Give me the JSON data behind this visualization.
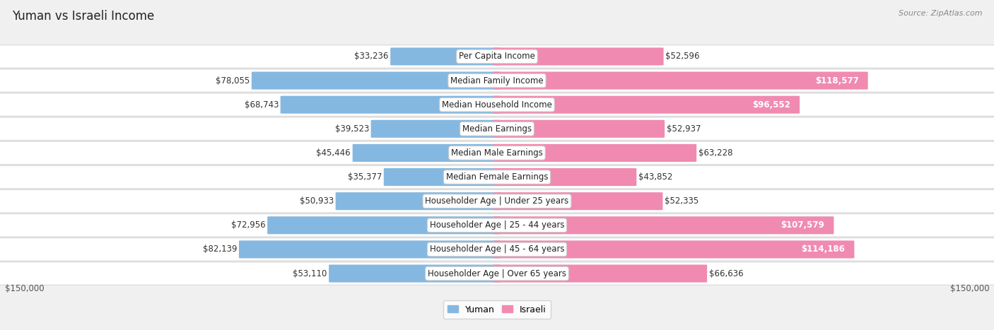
{
  "title": "Yuman vs Israeli Income",
  "source": "Source: ZipAtlas.com",
  "categories": [
    "Per Capita Income",
    "Median Family Income",
    "Median Household Income",
    "Median Earnings",
    "Median Male Earnings",
    "Median Female Earnings",
    "Householder Age | Under 25 years",
    "Householder Age | 25 - 44 years",
    "Householder Age | 45 - 64 years",
    "Householder Age | Over 65 years"
  ],
  "yuman_values": [
    33236,
    78055,
    68743,
    39523,
    45446,
    35377,
    50933,
    72956,
    82139,
    53110
  ],
  "israeli_values": [
    52596,
    118577,
    96552,
    52937,
    63228,
    43852,
    52335,
    107579,
    114186,
    66636
  ],
  "yuman_labels": [
    "$33,236",
    "$78,055",
    "$68,743",
    "$39,523",
    "$45,446",
    "$35,377",
    "$50,933",
    "$72,956",
    "$82,139",
    "$53,110"
  ],
  "israeli_labels": [
    "$52,596",
    "$118,577",
    "$96,552",
    "$52,937",
    "$63,228",
    "$43,852",
    "$52,335",
    "$107,579",
    "$114,186",
    "$66,636"
  ],
  "yuman_color": "#85b8e0",
  "israeli_color": "#f08ab0",
  "max_val": 150000,
  "bar_height": 0.72,
  "background_color": "#f0f0f0",
  "label_fontsize": 8.5,
  "title_fontsize": 12,
  "category_fontsize": 8.5,
  "israeli_large_threshold": 0.62
}
